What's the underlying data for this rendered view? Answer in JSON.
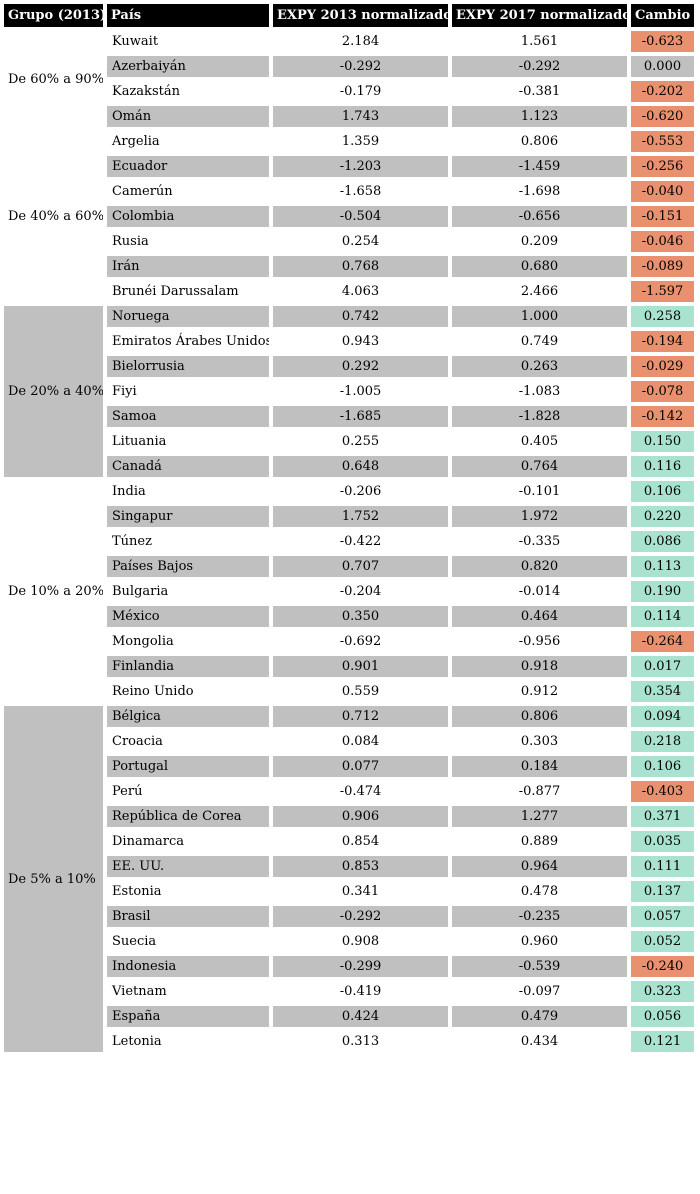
{
  "colors": {
    "header_bg": "#000000",
    "header_fg": "#ffffff",
    "row_alt_gray": "#C0C0C0",
    "change_negative": "#E9906F",
    "change_positive": "#A9E3CF"
  },
  "chart_data": {
    "type": "table",
    "columns": [
      "Grupo (2013)",
      "País",
      "EXPY 2013 normalizado",
      "EXPY 2017 normalizado",
      "Cambio"
    ],
    "groups": [
      {
        "label": "De 60% a 90%",
        "rows": [
          {
            "country": "Kuwait",
            "expy2013": "2.184",
            "expy2017": "1.561",
            "change": "-0.623",
            "status": "negative"
          },
          {
            "country": "Azerbaiyán",
            "expy2013": "-0.292",
            "expy2017": "-0.292",
            "change": "0.000",
            "status": "neutral"
          },
          {
            "country": "Kazakstán",
            "expy2013": "-0.179",
            "expy2017": "-0.381",
            "change": "-0.202",
            "status": "negative"
          },
          {
            "country": "Omán",
            "expy2013": "1.743",
            "expy2017": "1.123",
            "change": "-0.620",
            "status": "negative"
          }
        ]
      },
      {
        "label": "De 40% a 60%",
        "rows": [
          {
            "country": "Argelia",
            "expy2013": "1.359",
            "expy2017": "0.806",
            "change": "-0.553",
            "status": "negative"
          },
          {
            "country": "Ecuador",
            "expy2013": "-1.203",
            "expy2017": "-1.459",
            "change": "-0.256",
            "status": "negative"
          },
          {
            "country": "Camerún",
            "expy2013": "-1.658",
            "expy2017": "-1.698",
            "change": "-0.040",
            "status": "negative"
          },
          {
            "country": "Colombia",
            "expy2013": "-0.504",
            "expy2017": "-0.656",
            "change": "-0.151",
            "status": "negative"
          },
          {
            "country": "Rusia",
            "expy2013": "0.254",
            "expy2017": "0.209",
            "change": "-0.046",
            "status": "negative"
          },
          {
            "country": "Irán",
            "expy2013": "0.768",
            "expy2017": "0.680",
            "change": "-0.089",
            "status": "negative"
          },
          {
            "country": "Brunéi Darussalam",
            "expy2013": "4.063",
            "expy2017": "2.466",
            "change": "-1.597",
            "status": "negative"
          }
        ]
      },
      {
        "label": "De 20% a 40%",
        "rows": [
          {
            "country": "Noruega",
            "expy2013": "0.742",
            "expy2017": "1.000",
            "change": "0.258",
            "status": "positive"
          },
          {
            "country": "Emiratos Árabes Unidos",
            "expy2013": "0.943",
            "expy2017": "0.749",
            "change": "-0.194",
            "status": "negative"
          },
          {
            "country": "Bielorrusia",
            "expy2013": "0.292",
            "expy2017": "0.263",
            "change": "-0.029",
            "status": "negative"
          },
          {
            "country": "Fiyi",
            "expy2013": "-1.005",
            "expy2017": "-1.083",
            "change": "-0.078",
            "status": "negative"
          },
          {
            "country": "Samoa",
            "expy2013": "-1.685",
            "expy2017": "-1.828",
            "change": "-0.142",
            "status": "negative"
          },
          {
            "country": "Lituania",
            "expy2013": "0.255",
            "expy2017": "0.405",
            "change": "0.150",
            "status": "positive"
          },
          {
            "country": "Canadá",
            "expy2013": "0.648",
            "expy2017": "0.764",
            "change": "0.116",
            "status": "positive"
          }
        ]
      },
      {
        "label": "De 10% a 20%",
        "rows": [
          {
            "country": "India",
            "expy2013": "-0.206",
            "expy2017": "-0.101",
            "change": "0.106",
            "status": "positive"
          },
          {
            "country": "Singapur",
            "expy2013": "1.752",
            "expy2017": "1.972",
            "change": "0.220",
            "status": "positive"
          },
          {
            "country": "Túnez",
            "expy2013": "-0.422",
            "expy2017": "-0.335",
            "change": "0.086",
            "status": "positive"
          },
          {
            "country": "Países Bajos",
            "expy2013": "0.707",
            "expy2017": "0.820",
            "change": "0.113",
            "status": "positive"
          },
          {
            "country": "Bulgaria",
            "expy2013": "-0.204",
            "expy2017": "-0.014",
            "change": "0.190",
            "status": "positive"
          },
          {
            "country": "México",
            "expy2013": "0.350",
            "expy2017": "0.464",
            "change": "0.114",
            "status": "positive"
          },
          {
            "country": "Mongolia",
            "expy2013": "-0.692",
            "expy2017": "-0.956",
            "change": "-0.264",
            "status": "negative"
          },
          {
            "country": "Finlandia",
            "expy2013": "0.901",
            "expy2017": "0.918",
            "change": "0.017",
            "status": "positive"
          },
          {
            "country": "Reino Unido",
            "expy2013": "0.559",
            "expy2017": "0.912",
            "change": "0.354",
            "status": "positive"
          }
        ]
      },
      {
        "label": "De 5% a 10%",
        "rows": [
          {
            "country": "Bélgica",
            "expy2013": "0.712",
            "expy2017": "0.806",
            "change": "0.094",
            "status": "positive"
          },
          {
            "country": "Croacia",
            "expy2013": "0.084",
            "expy2017": "0.303",
            "change": "0.218",
            "status": "positive"
          },
          {
            "country": "Portugal",
            "expy2013": "0.077",
            "expy2017": "0.184",
            "change": "0.106",
            "status": "positive"
          },
          {
            "country": "Perú",
            "expy2013": "-0.474",
            "expy2017": "-0.877",
            "change": "-0.403",
            "status": "negative"
          },
          {
            "country": "República de Corea",
            "expy2013": "0.906",
            "expy2017": "1.277",
            "change": "0.371",
            "status": "positive"
          },
          {
            "country": "Dinamarca",
            "expy2013": "0.854",
            "expy2017": "0.889",
            "change": "0.035",
            "status": "positive"
          },
          {
            "country": "EE. UU.",
            "expy2013": "0.853",
            "expy2017": "0.964",
            "change": "0.111",
            "status": "positive"
          },
          {
            "country": "Estonia",
            "expy2013": "0.341",
            "expy2017": "0.478",
            "change": "0.137",
            "status": "positive"
          },
          {
            "country": "Brasil",
            "expy2013": "-0.292",
            "expy2017": "-0.235",
            "change": "0.057",
            "status": "positive"
          },
          {
            "country": "Suecia",
            "expy2013": "0.908",
            "expy2017": "0.960",
            "change": "0.052",
            "status": "positive"
          },
          {
            "country": "Indonesia",
            "expy2013": "-0.299",
            "expy2017": "-0.539",
            "change": "-0.240",
            "status": "negative"
          },
          {
            "country": "Vietnam",
            "expy2013": "-0.419",
            "expy2017": "-0.097",
            "change": "0.323",
            "status": "positive"
          },
          {
            "country": "España",
            "expy2013": "0.424",
            "expy2017": "0.479",
            "change": "0.056",
            "status": "positive"
          },
          {
            "country": "Letonia",
            "expy2013": "0.313",
            "expy2017": "0.434",
            "change": "0.121",
            "status": "positive"
          }
        ]
      }
    ]
  }
}
